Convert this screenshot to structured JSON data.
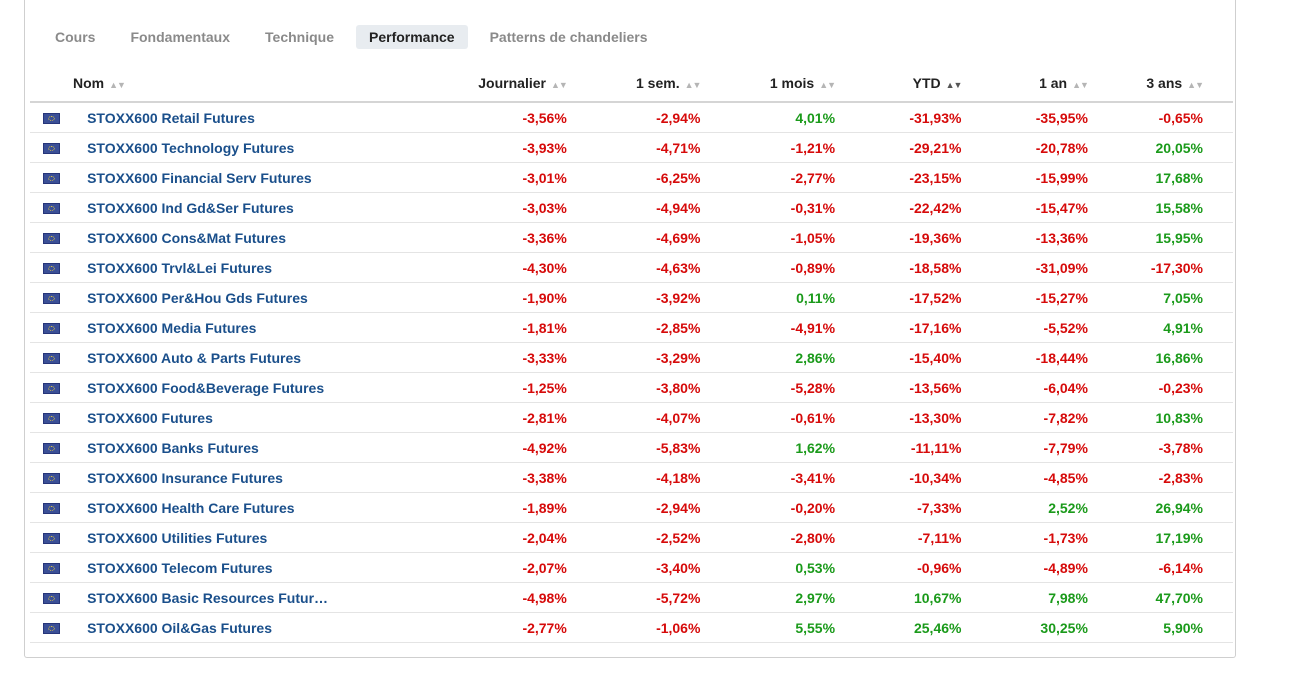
{
  "tabs": [
    {
      "label": "Cours",
      "active": false
    },
    {
      "label": "Fondamentaux",
      "active": false
    },
    {
      "label": "Technique",
      "active": false
    },
    {
      "label": "Performance",
      "active": true
    },
    {
      "label": "Patterns de chandeliers",
      "active": false
    }
  ],
  "columns": {
    "name": "Nom",
    "daily": "Journalier",
    "week": "1 sem.",
    "month": "1 mois",
    "ytd": "YTD",
    "year": "1 an",
    "three_years": "3 ans"
  },
  "colors": {
    "negative": "#d60a0a",
    "positive": "#1a9a1a",
    "link": "#1a4f8b"
  },
  "flag_icon": "eu-flag-icon",
  "rows": [
    {
      "name": "STOXX600 Retail Futures",
      "values": [
        "-3,56%",
        "-2,94%",
        "4,01%",
        "-31,93%",
        "-35,95%",
        "-0,65%"
      ]
    },
    {
      "name": "STOXX600 Technology Futures",
      "values": [
        "-3,93%",
        "-4,71%",
        "-1,21%",
        "-29,21%",
        "-20,78%",
        "20,05%"
      ]
    },
    {
      "name": "STOXX600 Financial Serv Futures",
      "values": [
        "-3,01%",
        "-6,25%",
        "-2,77%",
        "-23,15%",
        "-15,99%",
        "17,68%"
      ]
    },
    {
      "name": "STOXX600 Ind Gd&Ser Futures",
      "values": [
        "-3,03%",
        "-4,94%",
        "-0,31%",
        "-22,42%",
        "-15,47%",
        "15,58%"
      ]
    },
    {
      "name": "STOXX600 Cons&Mat Futures",
      "values": [
        "-3,36%",
        "-4,69%",
        "-1,05%",
        "-19,36%",
        "-13,36%",
        "15,95%"
      ]
    },
    {
      "name": "STOXX600 Trvl&Lei Futures",
      "values": [
        "-4,30%",
        "-4,63%",
        "-0,89%",
        "-18,58%",
        "-31,09%",
        "-17,30%"
      ]
    },
    {
      "name": "STOXX600 Per&Hou Gds Futures",
      "values": [
        "-1,90%",
        "-3,92%",
        "0,11%",
        "-17,52%",
        "-15,27%",
        "7,05%"
      ]
    },
    {
      "name": "STOXX600 Media Futures",
      "values": [
        "-1,81%",
        "-2,85%",
        "-4,91%",
        "-17,16%",
        "-5,52%",
        "4,91%"
      ]
    },
    {
      "name": "STOXX600 Auto & Parts Futures",
      "values": [
        "-3,33%",
        "-3,29%",
        "2,86%",
        "-15,40%",
        "-18,44%",
        "16,86%"
      ]
    },
    {
      "name": "STOXX600 Food&Beverage Futures",
      "values": [
        "-1,25%",
        "-3,80%",
        "-5,28%",
        "-13,56%",
        "-6,04%",
        "-0,23%"
      ]
    },
    {
      "name": "STOXX600 Futures",
      "values": [
        "-2,81%",
        "-4,07%",
        "-0,61%",
        "-13,30%",
        "-7,82%",
        "10,83%"
      ]
    },
    {
      "name": "STOXX600 Banks Futures",
      "values": [
        "-4,92%",
        "-5,83%",
        "1,62%",
        "-11,11%",
        "-7,79%",
        "-3,78%"
      ]
    },
    {
      "name": "STOXX600 Insurance Futures",
      "values": [
        "-3,38%",
        "-4,18%",
        "-3,41%",
        "-10,34%",
        "-4,85%",
        "-2,83%"
      ]
    },
    {
      "name": "STOXX600 Health Care Futures",
      "values": [
        "-1,89%",
        "-2,94%",
        "-0,20%",
        "-7,33%",
        "2,52%",
        "26,94%"
      ]
    },
    {
      "name": "STOXX600 Utilities Futures",
      "values": [
        "-2,04%",
        "-2,52%",
        "-2,80%",
        "-7,11%",
        "-1,73%",
        "17,19%"
      ]
    },
    {
      "name": "STOXX600 Telecom Futures",
      "values": [
        "-2,07%",
        "-3,40%",
        "0,53%",
        "-0,96%",
        "-4,89%",
        "-6,14%"
      ]
    },
    {
      "name": "STOXX600 Basic Resources Futur…",
      "values": [
        "-4,98%",
        "-5,72%",
        "2,97%",
        "10,67%",
        "7,98%",
        "47,70%"
      ]
    },
    {
      "name": "STOXX600 Oil&Gas Futures",
      "values": [
        "-2,77%",
        "-1,06%",
        "5,55%",
        "25,46%",
        "30,25%",
        "5,90%"
      ]
    }
  ]
}
